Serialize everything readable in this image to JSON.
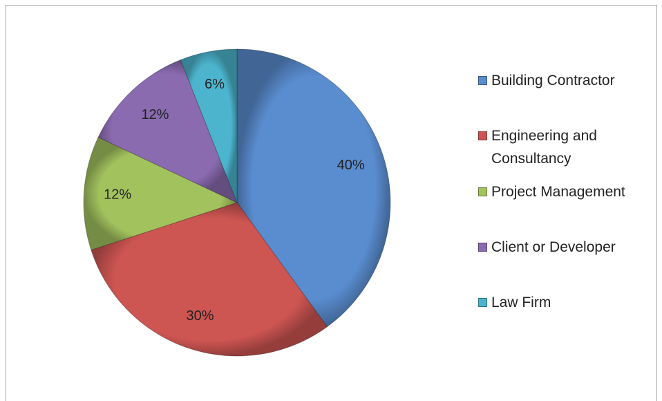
{
  "chart_data": {
    "type": "pie",
    "categories": [
      "Building Contractor",
      "Engineering and Consultancy",
      "Project Management",
      "Client or Developer",
      "Law Firm"
    ],
    "values": [
      40,
      30,
      12,
      12,
      6
    ],
    "value_labels": [
      "40%",
      "30%",
      "12%",
      "12%",
      "6%"
    ],
    "colors": [
      "#5a8dd0",
      "#cd5552",
      "#a2c25e",
      "#8a6bb0",
      "#4cb4cd"
    ],
    "legend": "right"
  }
}
